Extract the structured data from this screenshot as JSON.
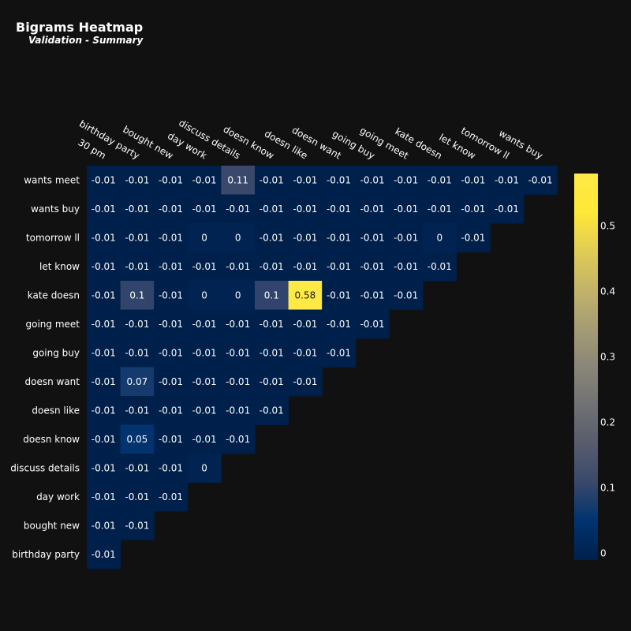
{
  "chart_data": {
    "type": "heatmap",
    "title": "Bigrams Heatmap",
    "subtitle": "Validation - Summary",
    "x_categories": [
      "30 pm",
      "birthday party",
      "bought new",
      "day work",
      "discuss details",
      "doesn know",
      "doesn like",
      "doesn want",
      "going buy",
      "going meet",
      "kate doesn",
      "let know",
      "tomorrow ll",
      "wants buy"
    ],
    "y_categories": [
      "wants meet",
      "wants buy",
      "tomorrow ll",
      "let know",
      "kate doesn",
      "going meet",
      "going buy",
      "doesn want",
      "doesn like",
      "doesn know",
      "discuss details",
      "day work",
      "bought new",
      "birthday party"
    ],
    "z": [
      [
        -0.01,
        -0.01,
        -0.01,
        -0.01,
        0.11,
        -0.01,
        -0.01,
        -0.01,
        -0.01,
        -0.01,
        -0.01,
        -0.01,
        -0.01,
        -0.01
      ],
      [
        -0.01,
        -0.01,
        -0.01,
        -0.01,
        -0.01,
        -0.01,
        -0.01,
        -0.01,
        -0.01,
        -0.01,
        -0.01,
        -0.01,
        -0.01
      ],
      [
        -0.01,
        -0.01,
        -0.01,
        -0.0,
        -0.0,
        -0.01,
        -0.01,
        -0.01,
        -0.01,
        -0.01,
        -0.0,
        -0.01
      ],
      [
        -0.01,
        -0.01,
        -0.01,
        -0.01,
        -0.01,
        -0.01,
        -0.01,
        -0.01,
        -0.01,
        -0.01,
        -0.01
      ],
      [
        -0.01,
        0.1,
        -0.01,
        -0.0,
        -0.0,
        0.1,
        0.58,
        -0.01,
        -0.01,
        -0.01
      ],
      [
        -0.01,
        -0.01,
        -0.01,
        -0.01,
        -0.01,
        -0.01,
        -0.01,
        -0.01,
        -0.01
      ],
      [
        -0.01,
        -0.01,
        -0.01,
        -0.01,
        -0.01,
        -0.01,
        -0.01,
        -0.01
      ],
      [
        -0.01,
        0.07,
        -0.01,
        -0.01,
        -0.01,
        -0.01,
        -0.01
      ],
      [
        -0.01,
        -0.01,
        -0.01,
        -0.01,
        -0.01,
        -0.01
      ],
      [
        -0.01,
        0.05,
        -0.01,
        -0.01,
        -0.01
      ],
      [
        -0.01,
        -0.01,
        -0.01,
        -0.0
      ],
      [
        -0.01,
        -0.01,
        -0.01
      ],
      [
        -0.01,
        -0.01
      ],
      [
        -0.01
      ]
    ],
    "colorscale": "cividis",
    "zmin": -0.01,
    "zmax": 0.58,
    "colorbar_ticks": [
      0,
      0.1,
      0.2,
      0.3,
      0.4,
      0.5
    ],
    "colorbar_tick_labels": [
      "0",
      "0.1",
      "0.2",
      "0.3",
      "0.4",
      "0.5"
    ],
    "background": "#111111"
  }
}
